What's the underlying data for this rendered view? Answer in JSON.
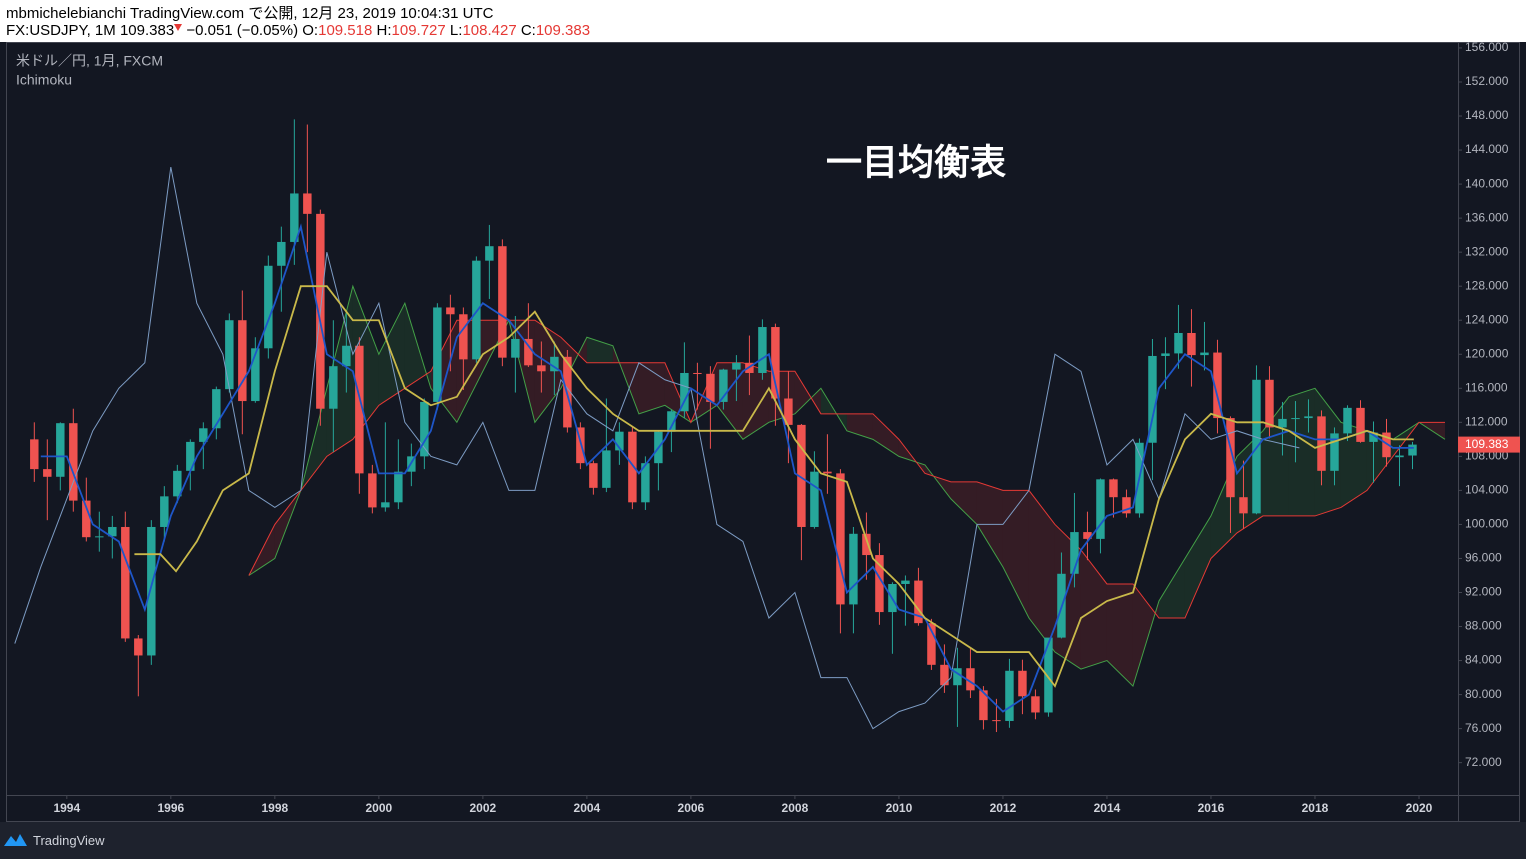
{
  "header": {
    "publisher": "mbmichelebianchi TradingView.com で公開, 12月 23, 2019 10:04:31 UTC",
    "symbol": "FX:USDJPY, 1M",
    "change": "−0.051 (−0.05%)",
    "open_label": "O:",
    "open": "109.518",
    "high_label": "H:",
    "high": "109.727",
    "low_label": "L:",
    "low": "108.427",
    "close_label": "C:",
    "close": "109.383"
  },
  "footer": {
    "brand": "TradingView"
  },
  "chart_data": {
    "type": "candlestick",
    "title": "一目均衡表",
    "legend": [
      "米ドル／円, 1月, FXCM",
      "Ichimoku"
    ],
    "up_color": "#26a69a",
    "down_color": "#ef5350",
    "x": [
      1993.375,
      1993.625,
      1993.875,
      1994.125,
      1994.375,
      1994.625,
      1994.875,
      1995.125,
      1995.375,
      1995.625,
      1995.875,
      1996.125,
      1996.375,
      1996.625,
      1996.875,
      1997.125,
      1997.375,
      1997.625,
      1997.875,
      1998.125,
      1998.375,
      1998.625,
      1998.875,
      1999.125,
      1999.375,
      1999.625,
      1999.875,
      2000.125,
      2000.375,
      2000.625,
      2000.875,
      2001.125,
      2001.375,
      2001.625,
      2001.875,
      2002.125,
      2002.375,
      2002.625,
      2002.875,
      2003.125,
      2003.375,
      2003.625,
      2003.875,
      2004.125,
      2004.375,
      2004.625,
      2004.875,
      2005.125,
      2005.375,
      2005.625,
      2005.875,
      2006.125,
      2006.375,
      2006.625,
      2006.875,
      2007.125,
      2007.375,
      2007.625,
      2007.875,
      2008.125,
      2008.375,
      2008.625,
      2008.875,
      2009.125,
      2009.375,
      2009.625,
      2009.875,
      2010.125,
      2010.375,
      2010.625,
      2010.875,
      2011.125,
      2011.375,
      2011.625,
      2011.875,
      2012.125,
      2012.375,
      2012.625,
      2012.875,
      2013.125,
      2013.375,
      2013.625,
      2013.875,
      2014.125,
      2014.375,
      2014.625,
      2014.875,
      2015.125,
      2015.375,
      2015.625,
      2015.875,
      2016.125,
      2016.375,
      2016.625,
      2016.875,
      2017.125,
      2017.375,
      2017.625,
      2017.875,
      2018.125,
      2018.375,
      2018.625,
      2018.875,
      2019.125,
      2019.375,
      2019.625,
      2019.875
    ],
    "open": [
      110.0,
      106.5,
      105.6,
      111.9,
      102.8,
      98.5,
      98.6,
      99.7,
      86.6,
      84.6,
      99.7,
      103.3,
      106.3,
      109.7,
      111.3,
      115.9,
      124.0,
      114.5,
      120.7,
      130.4,
      133.2,
      138.9,
      136.5,
      113.6,
      118.6,
      121.0,
      106.0,
      102.0,
      102.6,
      106.2,
      108.0,
      114.4,
      125.5,
      124.7,
      119.4,
      131.0,
      132.7,
      119.6,
      121.8,
      118.7,
      118.0,
      119.7,
      111.4,
      107.2,
      104.3,
      108.7,
      110.9,
      102.6,
      107.2,
      110.9,
      113.3,
      117.8,
      117.7,
      114.4,
      118.2,
      119.0,
      117.8,
      123.2,
      114.8,
      111.7,
      99.7,
      106.2,
      106.0,
      90.6,
      98.9,
      96.4,
      89.7,
      93.0,
      93.4,
      88.4,
      83.5,
      81.1,
      83.1,
      80.5,
      77.0,
      76.9,
      82.8,
      79.8,
      77.9,
      86.7,
      94.2,
      99.1,
      98.3,
      105.3,
      103.2,
      101.3,
      109.6,
      119.8,
      120.1,
      122.5,
      119.9,
      120.2,
      112.5,
      103.2,
      101.3,
      117.0,
      111.4,
      112.4,
      112.5,
      112.7,
      106.3,
      110.7,
      113.7,
      109.7,
      110.8,
      107.9,
      108.1
    ],
    "high": [
      112.0,
      110.0,
      112.0,
      113.6,
      105.5,
      101.5,
      101.0,
      101.5,
      87.0,
      100.5,
      104.5,
      107.0,
      110.0,
      112.0,
      116.2,
      124.8,
      127.5,
      122.0,
      131.6,
      135.0,
      147.6,
      147.0,
      137.0,
      124.0,
      124.8,
      122.0,
      107.0,
      112.0,
      110.0,
      109.5,
      114.8,
      126.0,
      127.0,
      125.5,
      131.5,
      135.2,
      133.5,
      124.5,
      126.0,
      121.5,
      121.5,
      120.5,
      112.0,
      107.5,
      114.8,
      112.0,
      111.5,
      108.0,
      111.0,
      113.5,
      121.4,
      119.0,
      118.6,
      118.3,
      119.9,
      122.2,
      124.1,
      123.6,
      118.0,
      111.8,
      108.6,
      110.6,
      106.5,
      99.7,
      101.4,
      97.8,
      93.2,
      94.0,
      94.9,
      88.9,
      85.9,
      85.5,
      85.5,
      81.0,
      79.5,
      84.2,
      84.1,
      80.6,
      86.6,
      96.7,
      103.7,
      101.5,
      105.4,
      105.4,
      104.1,
      110.1,
      121.8,
      122.0,
      125.8,
      125.3,
      123.8,
      121.7,
      112.7,
      107.5,
      118.7,
      118.6,
      114.4,
      114.5,
      114.7,
      113.4,
      111.4,
      114.0,
      114.6,
      112.1,
      112.4,
      109.3,
      109.7
    ],
    "low": [
      105.0,
      100.5,
      104.0,
      101.5,
      98.0,
      96.8,
      96.0,
      86.2,
      79.8,
      83.5,
      98.0,
      102.5,
      104.0,
      106.5,
      110.0,
      115.5,
      110.6,
      114.3,
      119.5,
      125.0,
      130.5,
      132.0,
      111.6,
      108.5,
      115.5,
      103.6,
      101.3,
      101.5,
      101.8,
      104.5,
      106.5,
      113.5,
      118.0,
      115.8,
      119.0,
      126.5,
      118.6,
      115.5,
      118.5,
      115.5,
      115.2,
      110.8,
      106.5,
      103.5,
      103.8,
      107.0,
      101.8,
      101.7,
      104.0,
      108.5,
      112.5,
      113.5,
      108.9,
      113.5,
      114.5,
      115.2,
      117.0,
      111.6,
      107.2,
      95.8,
      99.5,
      103.6,
      87.2,
      87.2,
      93.5,
      88.2,
      84.8,
      88.1,
      88.1,
      82.9,
      80.2,
      76.2,
      79.6,
      75.9,
      75.6,
      76.1,
      77.7,
      77.1,
      77.4,
      86.6,
      92.6,
      95.8,
      96.6,
      100.8,
      100.8,
      100.8,
      105.2,
      115.9,
      118.3,
      116.2,
      118.1,
      110.7,
      99.0,
      99.5,
      101.2,
      110.1,
      108.1,
      107.3,
      110.8,
      104.6,
      104.6,
      109.8,
      109.6,
      104.9,
      106.8,
      104.5,
      106.5
    ],
    "close": [
      106.5,
      105.6,
      111.9,
      102.8,
      98.5,
      98.6,
      99.7,
      86.6,
      84.6,
      99.7,
      103.3,
      106.3,
      109.7,
      111.3,
      115.9,
      124.0,
      114.5,
      120.7,
      130.4,
      133.2,
      138.9,
      136.5,
      113.6,
      118.6,
      121.0,
      106.0,
      102.0,
      102.6,
      106.2,
      108.0,
      114.4,
      125.5,
      124.7,
      119.4,
      131.0,
      132.7,
      119.6,
      121.8,
      118.7,
      118.0,
      119.7,
      111.4,
      107.2,
      104.3,
      108.7,
      110.9,
      102.6,
      107.2,
      110.9,
      113.3,
      117.8,
      117.7,
      114.4,
      118.2,
      119.0,
      117.8,
      123.2,
      114.8,
      111.7,
      99.7,
      106.2,
      106.0,
      90.6,
      98.9,
      96.4,
      89.7,
      93.0,
      93.4,
      88.4,
      83.5,
      81.1,
      83.1,
      80.5,
      77.0,
      76.9,
      82.8,
      79.8,
      77.9,
      86.7,
      94.2,
      99.1,
      98.3,
      105.3,
      103.2,
      101.3,
      109.6,
      119.8,
      120.1,
      122.5,
      119.9,
      120.2,
      112.5,
      103.2,
      101.3,
      117.0,
      111.4,
      112.4,
      112.5,
      112.7,
      106.3,
      110.7,
      113.7,
      109.7,
      110.8,
      107.9,
      108.1,
      109.383
    ],
    "series": [
      {
        "color": "#7d9cc4",
        "x": [
          1993.0,
          1993.5,
          1994.0,
          1994.5,
          1995.0,
          1995.5,
          1996.0,
          1996.5,
          1997.0,
          1997.5,
          1998.0,
          1998.5,
          1999.0,
          1999.5,
          2000.0,
          2000.5,
          2001.0,
          2001.5,
          2002.0,
          2002.5,
          2003.0,
          2003.5,
          2004.0,
          2004.5,
          2005.0,
          2005.5,
          2006.0,
          2006.5,
          2007.0,
          2007.5,
          2008.0,
          2008.5,
          2009.0,
          2009.5,
          2010.0,
          2010.5,
          2011.0,
          2011.5,
          2012.0,
          2012.5,
          2013.0,
          2013.5,
          2014.0,
          2014.5,
          2015.0,
          2015.5,
          2016.0,
          2016.5,
          2017.0,
          2017.7
        ],
        "values": [
          86,
          95,
          103,
          111,
          116,
          119,
          142,
          126,
          120,
          104,
          102,
          104,
          132,
          120,
          126,
          112,
          108,
          107,
          112,
          104,
          104,
          117,
          113,
          111,
          119,
          117,
          116,
          100,
          98,
          89,
          92,
          82,
          82,
          76,
          78,
          79,
          82,
          100,
          100,
          104,
          120,
          118,
          107,
          110,
          103,
          113,
          110,
          111,
          110,
          109
        ]
      },
      {
        "color": "#1e56c8",
        "x": [
          1993.5,
          1994.0,
          1994.5,
          1995.0,
          1995.5,
          1996.0,
          1996.5,
          1997.0,
          1997.5,
          1998.0,
          1998.5,
          1999.0,
          1999.5,
          2000.0,
          2000.5,
          2001.0,
          2001.5,
          2002.0,
          2002.5,
          2003.0,
          2003.5,
          2004.0,
          2004.5,
          2005.0,
          2005.5,
          2006.0,
          2006.5,
          2007.0,
          2007.5,
          2008.0,
          2008.5,
          2009.0,
          2009.5,
          2010.0,
          2010.5,
          2011.0,
          2011.5,
          2012.0,
          2012.5,
          2013.0,
          2013.5,
          2014.0,
          2014.5,
          2015.0,
          2015.5,
          2016.0,
          2016.5,
          2017.0,
          2017.5,
          2018.0,
          2018.5,
          2019.0,
          2019.5,
          2019.9
        ],
        "values": [
          108,
          108,
          100,
          98,
          90,
          101,
          108,
          113,
          118,
          126,
          135,
          120,
          118,
          106,
          106,
          111,
          122,
          126,
          124,
          120,
          118,
          107,
          110,
          106,
          110,
          116,
          114,
          118,
          120,
          106,
          104,
          92,
          95,
          90,
          89,
          83,
          81,
          78,
          80,
          88,
          97,
          101,
          102,
          116,
          120,
          118,
          106,
          110,
          111,
          110,
          110,
          111,
          109,
          109
        ]
      },
      {
        "color": "#c9b94a",
        "x": [
          1995.3,
          1995.8,
          1996.1,
          1996.5,
          1997.0,
          1997.5,
          1998.0,
          1998.5,
          1999.0,
          1999.5,
          2000.0,
          2000.5,
          2001.0,
          2001.5,
          2002.0,
          2002.5,
          2003.0,
          2003.5,
          2004.0,
          2004.5,
          2005.0,
          2005.5,
          2006.0,
          2006.5,
          2007.0,
          2007.5,
          2008.0,
          2008.5,
          2009.0,
          2009.5,
          2010.0,
          2010.5,
          2011.0,
          2011.5,
          2012.0,
          2012.5,
          2013.0,
          2013.5,
          2014.0,
          2014.5,
          2015.0,
          2015.5,
          2016.0,
          2016.5,
          2017.0,
          2017.5,
          2018.0,
          2018.5,
          2019.0,
          2019.5,
          2019.9
        ],
        "values": [
          96.5,
          96.5,
          94.5,
          98,
          104,
          106,
          118,
          128,
          128,
          124,
          124,
          116,
          114,
          115,
          120,
          122,
          125,
          120,
          116,
          113,
          111,
          111,
          111,
          111,
          111,
          116,
          110,
          106,
          105,
          96,
          93,
          89,
          87,
          85,
          85,
          85,
          81,
          89,
          91,
          92,
          103,
          110,
          113,
          112,
          112,
          111,
          109,
          110,
          111,
          110,
          110
        ]
      }
    ],
    "cloud": {
      "x": [
        1997.5,
        1998.0,
        1998.5,
        1999.0,
        1999.5,
        2000.0,
        2000.5,
        2001.0,
        2001.5,
        2002.0,
        2002.5,
        2003.0,
        2003.5,
        2004.0,
        2004.5,
        2005.0,
        2005.5,
        2006.0,
        2006.5,
        2007.0,
        2007.5,
        2008.0,
        2008.5,
        2009.0,
        2009.5,
        2010.0,
        2010.5,
        2011.0,
        2011.5,
        2012.0,
        2012.5,
        2013.0,
        2013.5,
        2014.0,
        2014.5,
        2015.0,
        2015.5,
        2016.0,
        2016.5,
        2017.0,
        2017.5,
        2018.0,
        2018.5,
        2019.0,
        2019.5,
        2020.0,
        2020.5
      ],
      "lead_a": {
        "color": "#43a047",
        "values": [
          94,
          96,
          104,
          116,
          128,
          120,
          126,
          116,
          112,
          118,
          124,
          112,
          116,
          122,
          121,
          113,
          114,
          112,
          114,
          110,
          112,
          113,
          116,
          111,
          110,
          108,
          107,
          103,
          100,
          95,
          89,
          85,
          83,
          84,
          81,
          91,
          96,
          101,
          108,
          111,
          115,
          116,
          112,
          111,
          110,
          112,
          110
        ]
      },
      "lead_b": {
        "color": "#e53935",
        "values": [
          94,
          100,
          104,
          108,
          110,
          114,
          116,
          118,
          124,
          124,
          124,
          124,
          122,
          119,
          119,
          119,
          119,
          112,
          119,
          119,
          118,
          118,
          113,
          113,
          113,
          110,
          106,
          105,
          105,
          104,
          104,
          100,
          97,
          93,
          93,
          89,
          89,
          96,
          99,
          101,
          101,
          101,
          102,
          104,
          108,
          112,
          112
        ]
      },
      "fill_up": "rgba(67,160,71,0.16)",
      "fill_down": "rgba(229,57,53,0.16)"
    },
    "xlim": [
      1992.85,
      2020.75
    ],
    "ylim": [
      68.2,
      156.7
    ],
    "xticks": [
      1994,
      1996,
      1998,
      2000,
      2002,
      2004,
      2006,
      2008,
      2010,
      2012,
      2014,
      2016,
      2018,
      2020
    ],
    "yticks": [
      {
        "value": 72,
        "label": "72.000"
      },
      {
        "value": 76,
        "label": "76.000"
      },
      {
        "value": 80,
        "label": "80.000"
      },
      {
        "value": 84,
        "label": "84.000"
      },
      {
        "value": 88,
        "label": "88.000"
      },
      {
        "value": 92,
        "label": "92.000"
      },
      {
        "value": 96,
        "label": "96.000"
      },
      {
        "value": 100,
        "label": "100.000"
      },
      {
        "value": 104,
        "label": "104.000"
      },
      {
        "value": 108,
        "label": "108.000"
      },
      {
        "value": 112,
        "label": "112.000"
      },
      {
        "value": 116,
        "label": "116.000"
      },
      {
        "value": 120,
        "label": "120.000"
      },
      {
        "value": 124,
        "label": "124.000"
      },
      {
        "value": 128,
        "label": "128.000"
      },
      {
        "value": 132,
        "label": "132.000"
      },
      {
        "value": 136,
        "label": "136.000"
      },
      {
        "value": 140,
        "label": "140.000"
      },
      {
        "value": 144,
        "label": "144.000"
      },
      {
        "value": 148,
        "label": "148.000"
      },
      {
        "value": 152,
        "label": "152.000"
      },
      {
        "value": 156,
        "label": "156.000"
      }
    ]
  }
}
